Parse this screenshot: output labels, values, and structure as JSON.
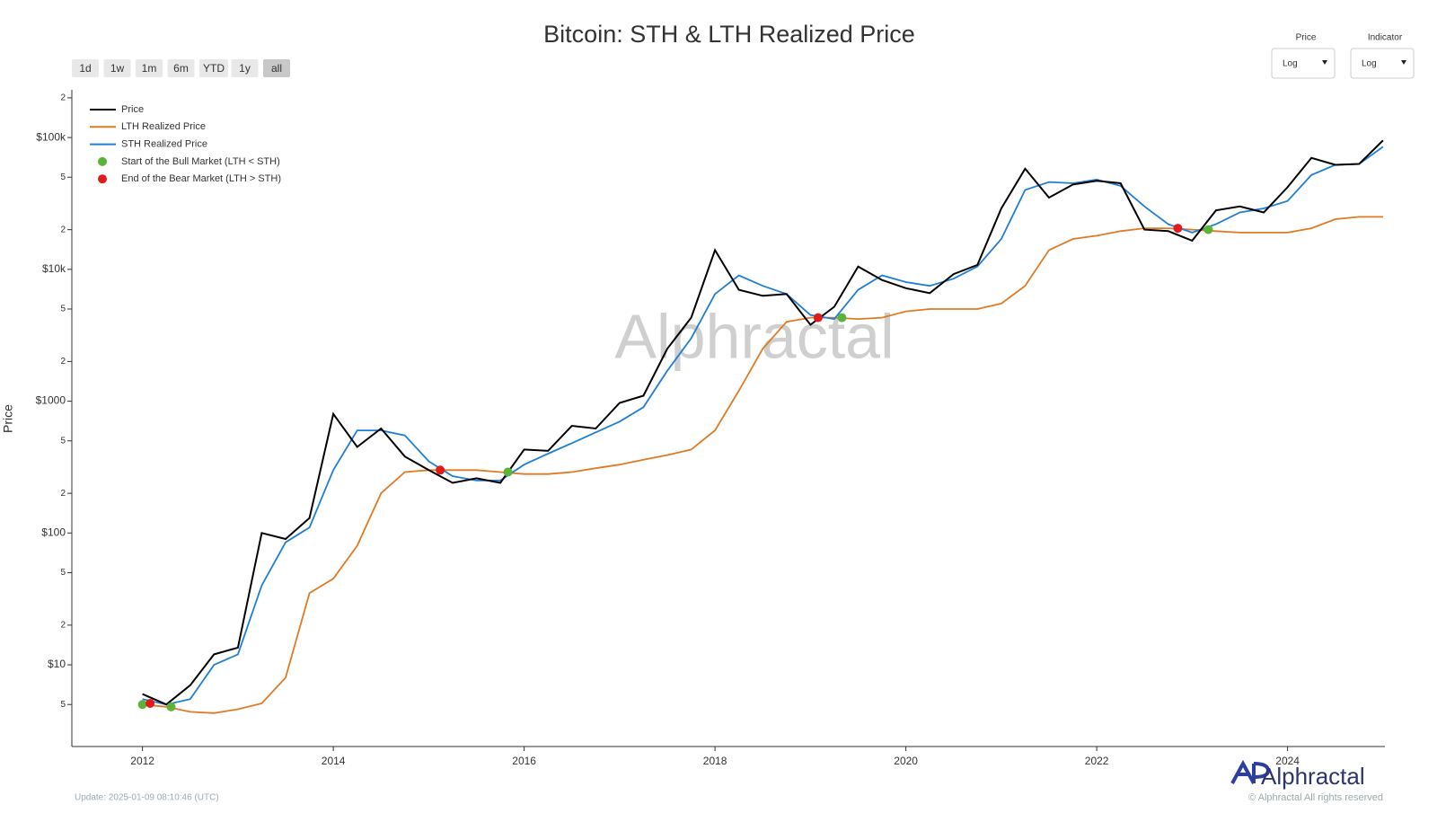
{
  "chart_data": {
    "type": "line",
    "title": "Bitcoin: STH & LTH Realized Price",
    "y_label": "Price",
    "range_buttons": [
      "1d",
      "1w",
      "1m",
      "6m",
      "YTD",
      "1y",
      "all"
    ],
    "controls": [
      {
        "label": "Price",
        "value": "Log"
      },
      {
        "label": "Indicator",
        "value": "Log"
      }
    ],
    "watermark": "Alphractal",
    "logo": "Alphractal",
    "copyright": "© Alphractal All rights reserved",
    "update": "Update: 2025-01-09 08:10:46 (UTC)",
    "log_scale": true,
    "legend": "upper left",
    "xlim": [
      2011.26,
      2025.02
    ],
    "xticks": [
      2012,
      2014,
      2016,
      2018,
      2020,
      2022,
      2024
    ],
    "ylim": [
      2.4,
      230000
    ],
    "yticks": [
      5,
      {
        "value": 10,
        "label": "$10"
      },
      {
        "value": 20,
        "label": "2"
      },
      {
        "value": 50,
        "label": "5"
      },
      {
        "value": 100,
        "label": "$100"
      },
      {
        "value": 200,
        "label": "2"
      },
      {
        "value": 500,
        "label": "5"
      },
      {
        "value": 1000,
        "label": "$1000"
      },
      {
        "value": 2000,
        "label": "2"
      },
      {
        "value": 5000,
        "label": "5"
      },
      {
        "value": 10000,
        "label": "$10k"
      },
      {
        "value": 20000,
        "label": "2"
      },
      {
        "value": 50000,
        "label": "5"
      },
      {
        "value": 100000,
        "label": "$100k"
      },
      {
        "value": 200000,
        "label": "2"
      }
    ],
    "x": [
      2012.0,
      2012.25,
      2012.5,
      2012.75,
      2013.0,
      2013.25,
      2013.5,
      2013.75,
      2014.0,
      2014.25,
      2014.5,
      2014.75,
      2015.0,
      2015.25,
      2015.5,
      2015.75,
      2016.0,
      2016.25,
      2016.5,
      2016.75,
      2017.0,
      2017.25,
      2017.5,
      2017.75,
      2018.0,
      2018.25,
      2018.5,
      2018.75,
      2019.0,
      2019.25,
      2019.5,
      2019.75,
      2020.0,
      2020.25,
      2020.5,
      2020.75,
      2021.0,
      2021.25,
      2021.5,
      2021.75,
      2022.0,
      2022.25,
      2022.5,
      2022.75,
      2023.0,
      2023.25,
      2023.5,
      2023.75,
      2024.0,
      2024.25,
      2024.5,
      2024.75,
      2025.0
    ],
    "series": [
      {
        "name": "Price",
        "color": "#000000",
        "type": "line",
        "values": [
          6,
          5,
          7,
          12,
          13.5,
          100,
          90,
          130,
          800,
          450,
          620,
          380,
          300,
          240,
          260,
          240,
          430,
          420,
          650,
          620,
          970,
          1100,
          2500,
          4300,
          14000,
          7000,
          6300,
          6500,
          3800,
          5200,
          10500,
          8300,
          7200,
          6600,
          9200,
          10800,
          29000,
          58000,
          35000,
          44000,
          47000,
          45000,
          20000,
          19500,
          16500,
          28000,
          30000,
          27000,
          42000,
          70000,
          62000,
          63000,
          95000
        ]
      },
      {
        "name": "LTH Realized Price",
        "color": "#e07b24",
        "type": "line",
        "values": [
          5,
          4.8,
          4.4,
          4.3,
          4.6,
          5.1,
          8,
          35,
          45,
          80,
          200,
          290,
          300,
          300,
          300,
          290,
          280,
          280,
          290,
          310,
          330,
          360,
          390,
          430,
          600,
          1200,
          2500,
          4000,
          4300,
          4300,
          4200,
          4300,
          4800,
          5000,
          5000,
          5000,
          5500,
          7500,
          14000,
          17000,
          18000,
          19500,
          20500,
          20500,
          20000,
          19500,
          19000,
          19000,
          19000,
          20500,
          24000,
          25000,
          25000
        ]
      },
      {
        "name": "STH Realized Price",
        "color": "#1f7fd6",
        "type": "line",
        "values": [
          5.5,
          5,
          5.5,
          10,
          12,
          40,
          85,
          110,
          300,
          600,
          600,
          550,
          350,
          270,
          250,
          250,
          330,
          400,
          480,
          580,
          700,
          900,
          1700,
          3000,
          6500,
          9000,
          7500,
          6500,
          4500,
          4200,
          7000,
          9000,
          8000,
          7500,
          8500,
          10500,
          17000,
          40000,
          46000,
          45000,
          48000,
          43000,
          30000,
          22000,
          19000,
          22000,
          27000,
          29000,
          33000,
          52000,
          62000,
          63000,
          85000
        ]
      },
      {
        "name": "Start of the Bull Market (LTH < STH)",
        "color": "#5cb33a",
        "type": "scatter",
        "x": [
          2012.0,
          2012.3,
          2015.83,
          2019.33,
          2023.17
        ],
        "values": [
          5,
          4.8,
          290,
          4300,
          20000
        ]
      },
      {
        "name": "End of the Bear Market (LTH > STH)",
        "color": "#e01b1b",
        "type": "scatter",
        "x": [
          2012.08,
          2015.12,
          2019.08,
          2022.85
        ],
        "values": [
          5.1,
          300,
          4300,
          20500
        ]
      }
    ]
  }
}
